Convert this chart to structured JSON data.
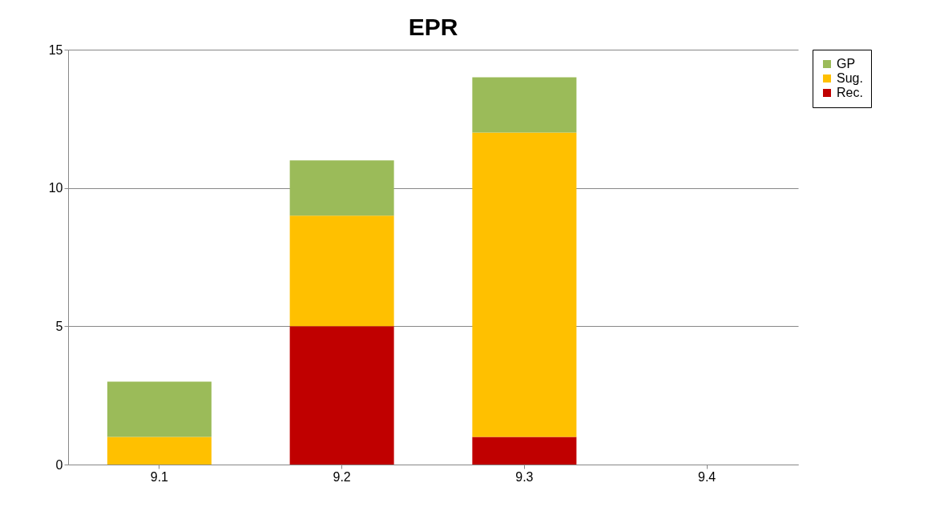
{
  "chart_data": {
    "type": "bar",
    "title": "EPR",
    "stacked": true,
    "categories": [
      "9.1",
      "9.2",
      "9.3",
      "9.4"
    ],
    "series": [
      {
        "name": "Rec.",
        "color": "#c00000",
        "values": [
          0,
          5,
          1,
          0
        ]
      },
      {
        "name": "Sug.",
        "color": "#ffc000",
        "values": [
          1,
          4,
          11,
          0
        ]
      },
      {
        "name": "GP",
        "color": "#9bbb59",
        "values": [
          2,
          2,
          2,
          0
        ]
      }
    ],
    "ylim": [
      0,
      15
    ],
    "yticks": [
      0,
      5,
      10,
      15
    ],
    "grid": "y",
    "legend": "right"
  }
}
